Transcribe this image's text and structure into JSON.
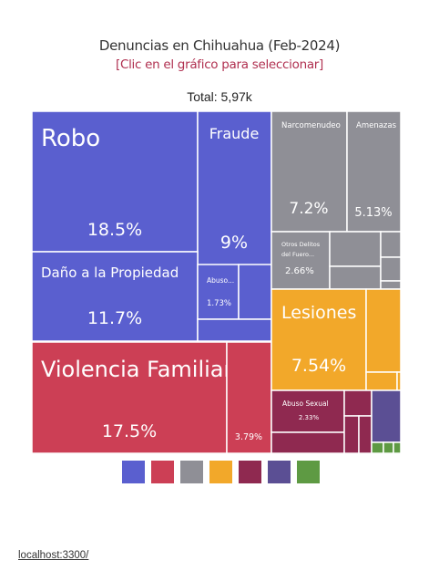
{
  "header": {
    "title": "Denuncias en Chihuahua (Feb-2024)",
    "subtitle": "[Clic en el gráfico para seleccionar]",
    "total": "Total: 5,97k"
  },
  "chart_data": {
    "type": "treemap",
    "total": "5,97k",
    "colors": {
      "blue": "#5a5fcf",
      "red": "#cc3f55",
      "gray": "#8f8f96",
      "orange": "#f2a82a",
      "maroon": "#8f2950",
      "indigo": "#5b4f94",
      "green": "#5e9a43"
    },
    "groups": [
      {
        "color": "blue",
        "items": [
          {
            "label": "Robo",
            "value": "18.5%"
          },
          {
            "label": "Fraude",
            "value": "9%"
          },
          {
            "label": "Daño a la Propiedad",
            "value": "11.7%"
          },
          {
            "label": "Abuso...",
            "value": "1.73%"
          }
        ]
      },
      {
        "color": "red",
        "items": [
          {
            "label": "Violencia Familiar",
            "value": "17.5%"
          },
          {
            "label": "",
            "value": "3.79%"
          }
        ]
      },
      {
        "color": "gray",
        "items": [
          {
            "label": "Narcomenudeo",
            "value": "7.2%"
          },
          {
            "label": "Amenazas",
            "value": "5.13%"
          },
          {
            "label": "Otros Delitos del Fuero...",
            "value": "2.66%"
          }
        ]
      },
      {
        "color": "orange",
        "items": [
          {
            "label": "Lesiones",
            "value": "7.54%"
          }
        ]
      },
      {
        "color": "maroon",
        "items": [
          {
            "label": "Abuso Sexual",
            "value": "2.33%"
          }
        ]
      },
      {
        "color": "indigo",
        "items": []
      },
      {
        "color": "green",
        "items": []
      }
    ],
    "legend": [
      "blue",
      "red",
      "gray",
      "orange",
      "maroon",
      "indigo",
      "green"
    ]
  },
  "footer": {
    "link": "localhost:3300/"
  }
}
